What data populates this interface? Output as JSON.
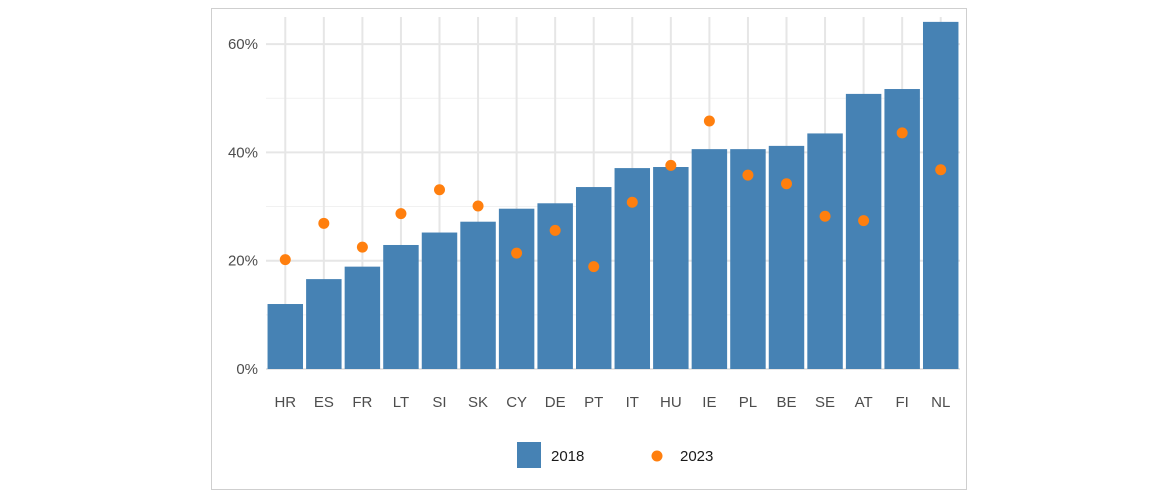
{
  "chart_data": {
    "type": "bar",
    "categories": [
      "HR",
      "ES",
      "FR",
      "LT",
      "SI",
      "SK",
      "CY",
      "DE",
      "PT",
      "IT",
      "HU",
      "IE",
      "PL",
      "BE",
      "SE",
      "AT",
      "FI",
      "NL"
    ],
    "series": [
      {
        "name": "2018",
        "type": "bar",
        "color": "#4682b4",
        "values": [
          12,
          16.6,
          18.9,
          22.9,
          25.2,
          27.2,
          29.6,
          30.6,
          33.6,
          37.1,
          37.3,
          40.6,
          40.6,
          41.2,
          43.5,
          50.8,
          51.7,
          64.1
        ]
      },
      {
        "name": "2023",
        "type": "scatter",
        "color": "#ff7f0e",
        "values": [
          20.2,
          26.9,
          22.5,
          28.7,
          33.1,
          30.1,
          21.4,
          25.6,
          18.9,
          30.8,
          37.6,
          45.8,
          35.8,
          34.2,
          28.2,
          27.4,
          43.6,
          36.8
        ]
      }
    ],
    "ylim": [
      0,
      65
    ],
    "yticks": [
      0,
      20,
      40,
      60
    ],
    "ytick_labels": [
      "0%",
      "20%",
      "40%",
      "60%"
    ],
    "grid": true,
    "legend": {
      "position": "bottom",
      "entries": [
        "2018",
        "2023"
      ]
    }
  }
}
